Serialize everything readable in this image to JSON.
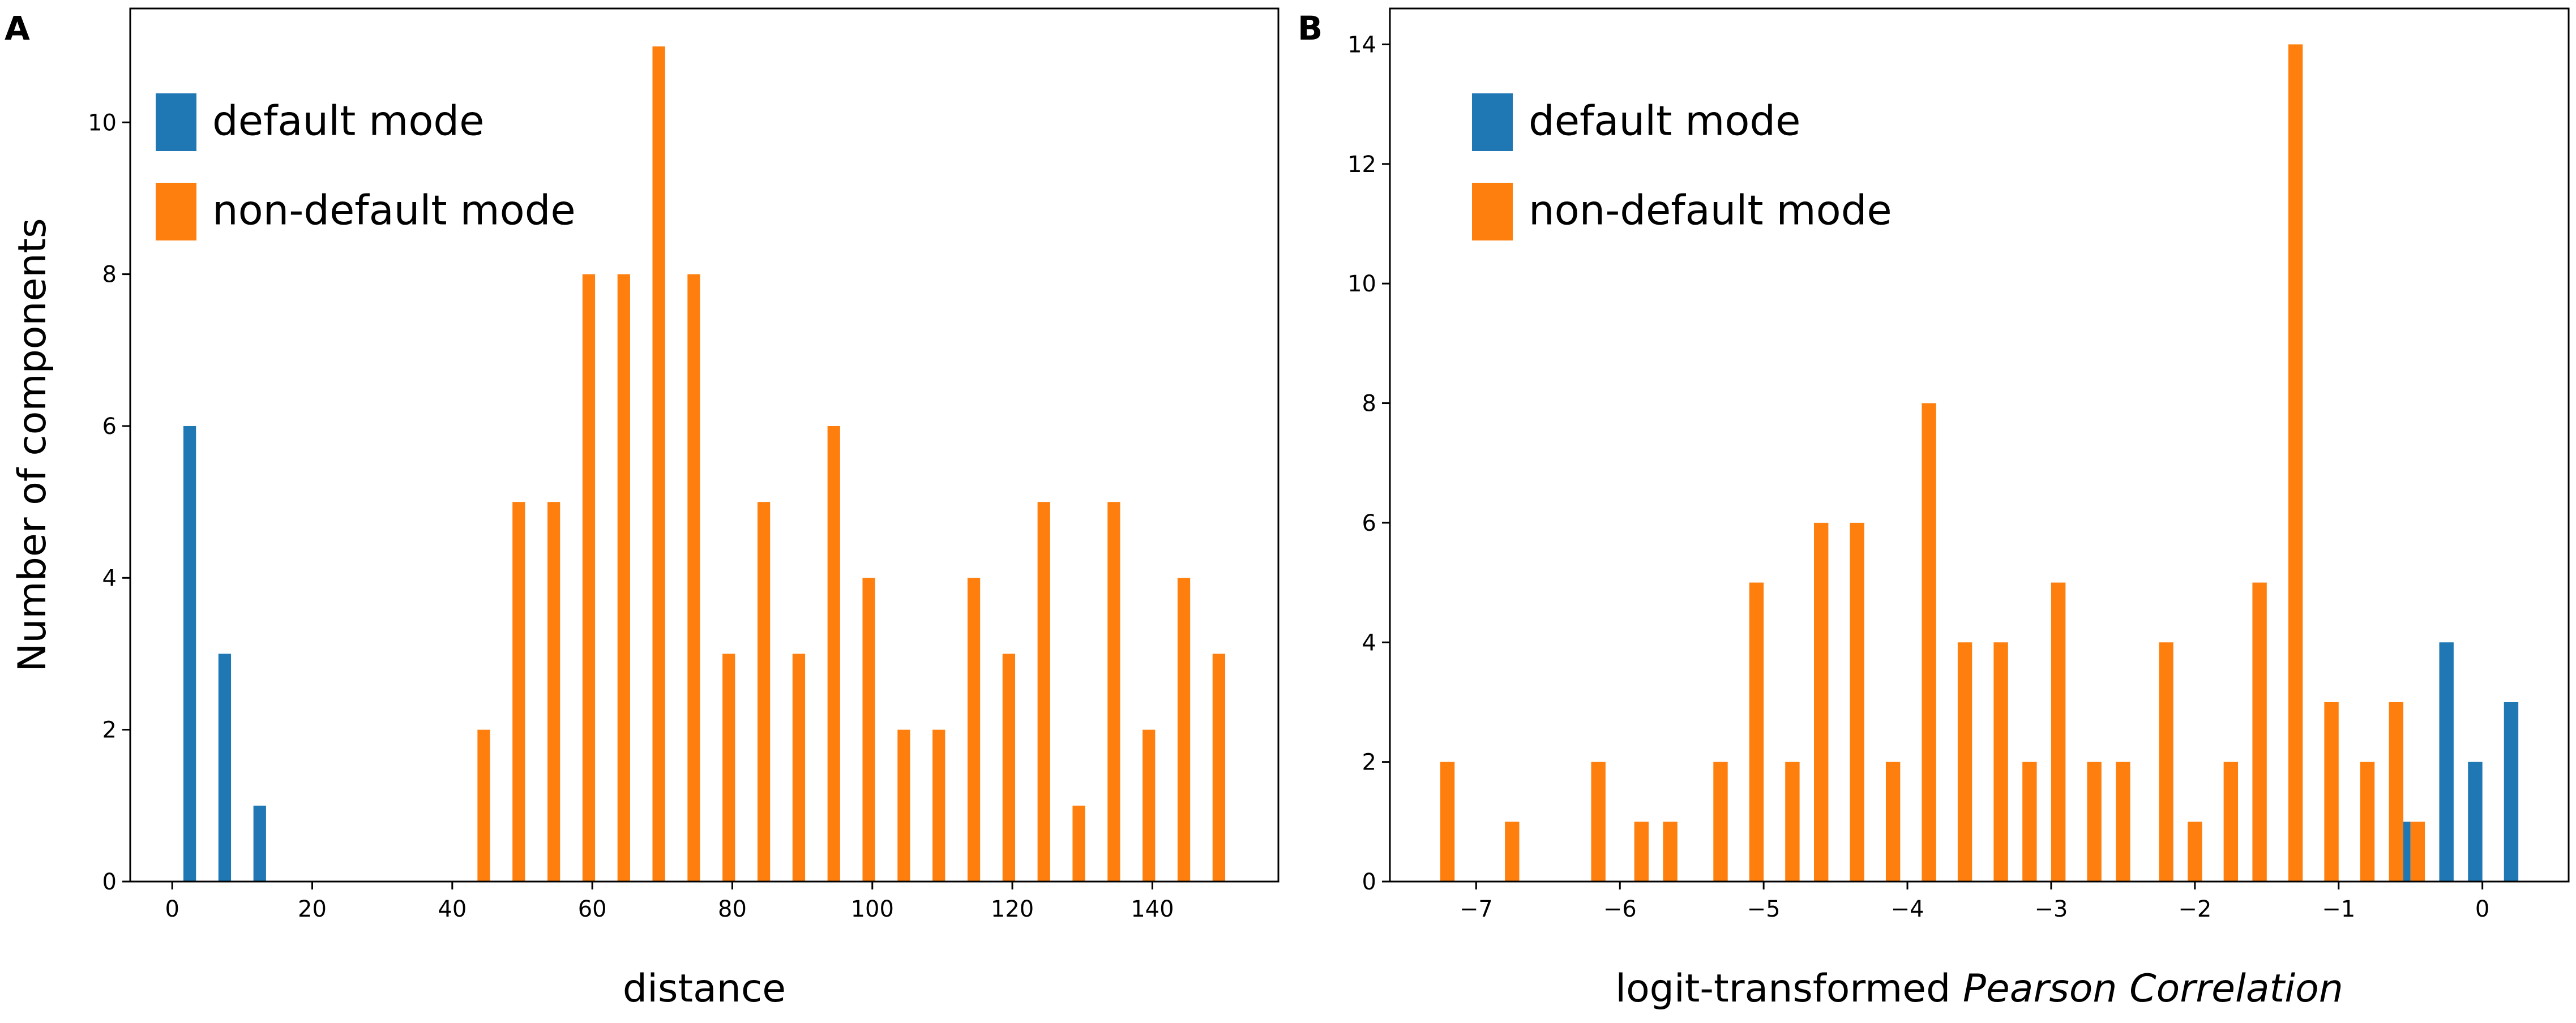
{
  "chart_data": [
    {
      "panel": "A",
      "type": "bar",
      "xlabel": "distance",
      "ylabel": "Number of components",
      "xlim": [
        -6,
        158
      ],
      "ylim": [
        0,
        11.5
      ],
      "xticks": [
        0,
        20,
        40,
        60,
        80,
        100,
        120,
        140
      ],
      "yticks": [
        0,
        2,
        4,
        6,
        8,
        10
      ],
      "grid": false,
      "legend_position": "top-left",
      "bar_width": 1.8,
      "series": [
        {
          "name": "default mode",
          "color": "#1f77b4",
          "points": [
            {
              "x": 2.5,
              "y": 6
            },
            {
              "x": 7.5,
              "y": 3
            },
            {
              "x": 12.5,
              "y": 1
            }
          ]
        },
        {
          "name": "non-default mode",
          "color": "#ff7f0e",
          "points": [
            {
              "x": 44.5,
              "y": 2
            },
            {
              "x": 49.5,
              "y": 5
            },
            {
              "x": 54.5,
              "y": 5
            },
            {
              "x": 59.5,
              "y": 8
            },
            {
              "x": 64.5,
              "y": 8
            },
            {
              "x": 69.5,
              "y": 11
            },
            {
              "x": 74.5,
              "y": 8
            },
            {
              "x": 79.5,
              "y": 3
            },
            {
              "x": 84.5,
              "y": 5
            },
            {
              "x": 89.5,
              "y": 3
            },
            {
              "x": 94.5,
              "y": 6
            },
            {
              "x": 99.5,
              "y": 4
            },
            {
              "x": 104.5,
              "y": 2
            },
            {
              "x": 109.5,
              "y": 2
            },
            {
              "x": 114.5,
              "y": 4
            },
            {
              "x": 119.5,
              "y": 3
            },
            {
              "x": 124.5,
              "y": 5
            },
            {
              "x": 129.5,
              "y": 1
            },
            {
              "x": 134.5,
              "y": 5
            },
            {
              "x": 139.5,
              "y": 2
            },
            {
              "x": 144.5,
              "y": 4
            },
            {
              "x": 149.5,
              "y": 3
            }
          ]
        }
      ]
    },
    {
      "panel": "B",
      "type": "bar",
      "xlabel": "logit-transformed ",
      "xlabel_italic": "Pearson Correlation",
      "ylabel": "",
      "xlim": [
        -7.6,
        0.6
      ],
      "ylim": [
        0,
        14.6
      ],
      "xticks": [
        -7,
        -6,
        -5,
        -4,
        -3,
        -2,
        -1,
        0
      ],
      "xtick_labels": [
        "−7",
        "−6",
        "−5",
        "−4",
        "−3",
        "−2",
        "−1",
        "0"
      ],
      "yticks": [
        0,
        2,
        4,
        6,
        8,
        10,
        12,
        14
      ],
      "grid": false,
      "legend_position": "top-left",
      "bar_width": 0.1,
      "series": [
        {
          "name": "default mode",
          "color": "#1f77b4",
          "points": [
            {
              "x": -0.55,
              "y": 1
            },
            {
              "x": -0.25,
              "y": 4
            },
            {
              "x": -0.05,
              "y": 2
            },
            {
              "x": 0.2,
              "y": 3
            }
          ]
        },
        {
          "name": "non-default mode",
          "color": "#ff7f0e",
          "points": [
            {
              "x": -7.2,
              "y": 2
            },
            {
              "x": -6.75,
              "y": 1
            },
            {
              "x": -6.15,
              "y": 2
            },
            {
              "x": -5.85,
              "y": 1
            },
            {
              "x": -5.65,
              "y": 1
            },
            {
              "x": -5.3,
              "y": 2
            },
            {
              "x": -5.05,
              "y": 5
            },
            {
              "x": -4.8,
              "y": 2
            },
            {
              "x": -4.6,
              "y": 6
            },
            {
              "x": -4.35,
              "y": 6
            },
            {
              "x": -4.1,
              "y": 2
            },
            {
              "x": -3.85,
              "y": 8
            },
            {
              "x": -3.6,
              "y": 4
            },
            {
              "x": -3.35,
              "y": 4
            },
            {
              "x": -3.15,
              "y": 2
            },
            {
              "x": -2.95,
              "y": 5
            },
            {
              "x": -2.7,
              "y": 2
            },
            {
              "x": -2.5,
              "y": 2
            },
            {
              "x": -2.2,
              "y": 4
            },
            {
              "x": -2.0,
              "y": 1
            },
            {
              "x": -1.75,
              "y": 2
            },
            {
              "x": -1.55,
              "y": 5
            },
            {
              "x": -1.3,
              "y": 14
            },
            {
              "x": -1.05,
              "y": 3
            },
            {
              "x": -0.8,
              "y": 2
            },
            {
              "x": -0.6,
              "y": 3
            },
            {
              "x": -0.45,
              "y": 1
            }
          ]
        }
      ]
    }
  ]
}
